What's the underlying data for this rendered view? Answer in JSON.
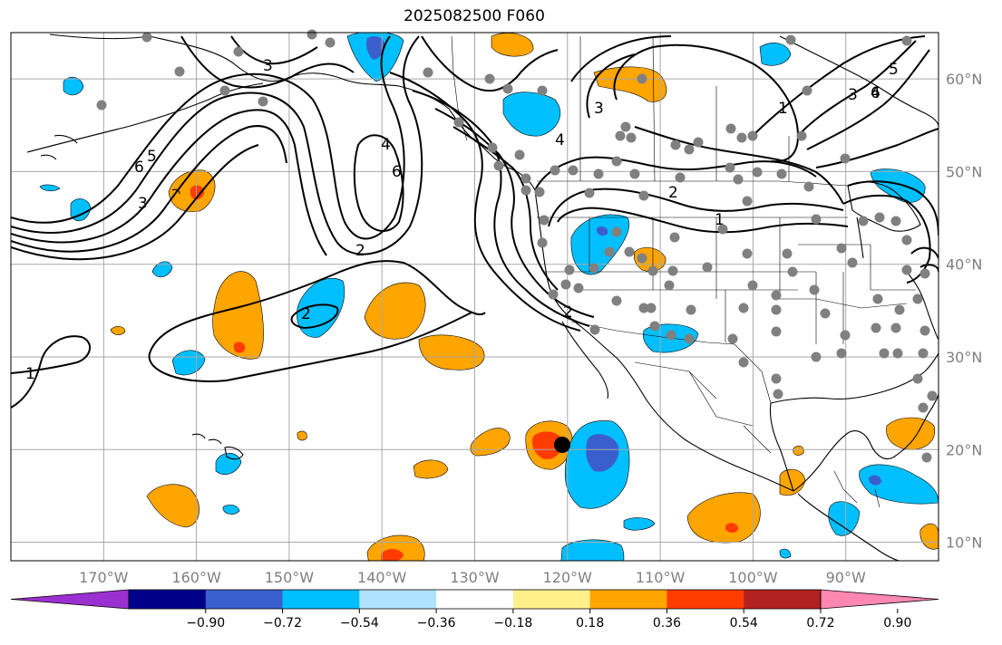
{
  "title": "2025082500 F060",
  "map": {
    "lon_range": [
      -180,
      -80
    ],
    "lat_range": [
      8,
      65
    ],
    "lat_labels": [
      "10°N",
      "20°N",
      "30°N",
      "40°N",
      "50°N",
      "60°N"
    ],
    "lat_values": [
      10,
      20,
      30,
      40,
      50,
      60
    ],
    "lon_labels": [
      "170°W",
      "160°W",
      "150°W",
      "140°W",
      "130°W",
      "120°W",
      "110°W",
      "100°W",
      "90°W"
    ],
    "lon_values": [
      -170,
      -160,
      -150,
      -140,
      -130,
      -120,
      -110,
      -100,
      -90
    ],
    "grid": true
  },
  "colorbar": {
    "tick_labels": [
      "−0.90",
      "−0.72",
      "−0.54",
      "−0.36",
      "−0.18",
      "0.18",
      "0.36",
      "0.54",
      "0.72",
      "0.90"
    ],
    "colors": [
      "#9b30d0",
      "#00008b",
      "#3a5fcd",
      "#00bfff",
      "#b0e2ff",
      "#ffffff",
      "#fff08c",
      "#ffa500",
      "#ff3c00",
      "#b22222",
      "#ff88b0"
    ],
    "extend": "both"
  },
  "contour_labels": [
    "1",
    "2",
    "3",
    "4",
    "5",
    "6"
  ],
  "colors": {
    "contour": "#000000",
    "grid": "#a8a8a8",
    "station": "#808080",
    "storm": "#000000"
  }
}
